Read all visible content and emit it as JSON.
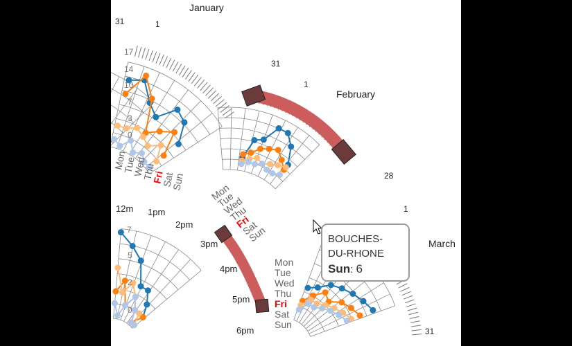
{
  "chart_data": {
    "type": "radial-line",
    "months": {
      "january": {
        "name": "January",
        "first": "1",
        "last": "31"
      },
      "february": {
        "name": "February",
        "first": "1",
        "last": "28"
      },
      "march": {
        "name": "March",
        "first": "1",
        "last": "31"
      }
    },
    "previous_month_last": "31",
    "radial_ticks": [
      "17",
      "14",
      "10",
      "7",
      "3",
      "0"
    ],
    "hour_ticks": [
      "12m",
      "1pm",
      "2pm",
      "3pm",
      "4pm",
      "5pm",
      "6pm"
    ],
    "hour_ticks_values": [
      "7",
      "5",
      "2",
      "0"
    ],
    "weekdays": [
      "Mon",
      "Tue",
      "Wed",
      "Thu",
      "Fri",
      "Sat",
      "Sun"
    ],
    "highlight_weekday": "Fri",
    "series": [
      {
        "color": "#1f77b4"
      },
      {
        "color": "#ff7f0e"
      },
      {
        "color": "#ffbb78"
      },
      {
        "color": "#aec7e8"
      }
    ],
    "february_series": [
      [
        3,
        9,
        10,
        15,
        15,
        12,
        7
      ],
      [
        4,
        5,
        7,
        8,
        9,
        7,
        5
      ],
      [
        2,
        3,
        4,
        3,
        4,
        5,
        6
      ],
      [
        1,
        2,
        2,
        3,
        2,
        2,
        3
      ]
    ],
    "january_series": [
      [
        14,
        15,
        11,
        9,
        13,
        12,
        8
      ],
      [
        11,
        16,
        12,
        5,
        7,
        9,
        4
      ],
      [
        4,
        4,
        5,
        4,
        3,
        5,
        2
      ],
      [
        1,
        0,
        2,
        0,
        1,
        0,
        0
      ]
    ],
    "selection": {
      "axis": "day of month",
      "from": 1,
      "to": 28
    },
    "hour_selection": {
      "from": "3pm",
      "to": "5pm"
    }
  },
  "tooltip": {
    "region": "BOUCHES-DU-RHONE",
    "region_line1": "BOUCHES-",
    "region_line2": "DU-RHONE",
    "day": "Sun",
    "separator": ":",
    "value": "6"
  },
  "colors": {
    "highlight": "#ff0000",
    "brush": "#cd5c5c",
    "brush_handle": "#6b3b3b"
  }
}
